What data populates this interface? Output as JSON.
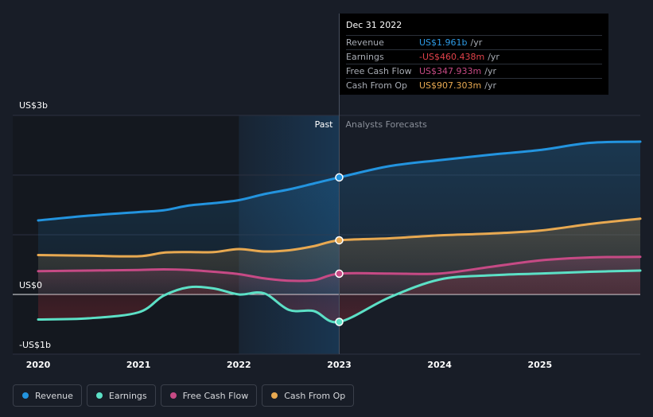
{
  "colors": {
    "background": "#181d27",
    "revenue": "#2394df",
    "earnings": "#5ce0c6",
    "free_cash_flow": "#c64a85",
    "cash_from_op": "#e8a951",
    "past_highlight": "#1a4a73",
    "grid": "#2b3140"
  },
  "tooltip": {
    "date": "Dec 31 2022",
    "rows": [
      {
        "label": "Revenue",
        "value": "US$1.961b",
        "unit": "/yr",
        "color": "#2e9be6"
      },
      {
        "label": "Earnings",
        "value": "-US$460.438m",
        "unit": "/yr",
        "color": "#e0424a"
      },
      {
        "label": "Free Cash Flow",
        "value": "US$347.933m",
        "unit": "/yr",
        "color": "#c64a85"
      },
      {
        "label": "Cash From Op",
        "value": "US$907.303m",
        "unit": "/yr",
        "color": "#e8a951"
      }
    ]
  },
  "legend": [
    {
      "label": "Revenue",
      "color": "#2394df"
    },
    {
      "label": "Earnings",
      "color": "#5ce0c6"
    },
    {
      "label": "Free Cash Flow",
      "color": "#c64a85"
    },
    {
      "label": "Cash From Op",
      "color": "#e8a951"
    }
  ],
  "chart_data": {
    "type": "line",
    "title": "",
    "xlabel": "",
    "ylabel": "",
    "past_label": "Past",
    "forecast_label": "Analysts Forecasts",
    "x_range": [
      2020.0,
      2026.0
    ],
    "divider_x": 2023.0,
    "highlight_start_x": 2022.0,
    "dim_start_x": 2021.0,
    "ylim": [
      -1.0,
      3.0
    ],
    "y_ticks": [
      {
        "value": 3,
        "label": "US$3b"
      },
      {
        "value": 0,
        "label": "US$0"
      },
      {
        "value": -1,
        "label": "-US$1b"
      }
    ],
    "y_gridlines": [
      3,
      2,
      1,
      0,
      -1
    ],
    "x_ticks": [
      {
        "value": 2020.0,
        "label": "2020"
      },
      {
        "value": 2021.0,
        "label": "2021"
      },
      {
        "value": 2022.0,
        "label": "2022"
      },
      {
        "value": 2023.0,
        "label": "2023"
      },
      {
        "value": 2024.0,
        "label": "2024"
      },
      {
        "value": 2025.0,
        "label": "2025"
      }
    ],
    "series": [
      {
        "name": "Revenue",
        "key": "revenue",
        "points": [
          [
            2020.0,
            1.24
          ],
          [
            2020.5,
            1.32
          ],
          [
            2021.0,
            1.38
          ],
          [
            2021.25,
            1.41
          ],
          [
            2021.5,
            1.49
          ],
          [
            2021.75,
            1.53
          ],
          [
            2022.0,
            1.58
          ],
          [
            2022.25,
            1.68
          ],
          [
            2022.5,
            1.76
          ],
          [
            2022.75,
            1.86
          ],
          [
            2023.0,
            1.961
          ],
          [
            2023.5,
            2.15
          ],
          [
            2024.0,
            2.25
          ],
          [
            2024.5,
            2.34
          ],
          [
            2025.0,
            2.42
          ],
          [
            2025.5,
            2.54
          ],
          [
            2026.0,
            2.56
          ]
        ],
        "fill": true
      },
      {
        "name": "Cash From Op",
        "key": "cash_from_op",
        "points": [
          [
            2020.0,
            0.66
          ],
          [
            2020.5,
            0.65
          ],
          [
            2021.0,
            0.64
          ],
          [
            2021.25,
            0.7
          ],
          [
            2021.5,
            0.71
          ],
          [
            2021.75,
            0.71
          ],
          [
            2022.0,
            0.76
          ],
          [
            2022.25,
            0.72
          ],
          [
            2022.5,
            0.74
          ],
          [
            2022.75,
            0.81
          ],
          [
            2023.0,
            0.907
          ],
          [
            2023.5,
            0.94
          ],
          [
            2024.0,
            0.99
          ],
          [
            2024.5,
            1.02
          ],
          [
            2025.0,
            1.07
          ],
          [
            2025.5,
            1.18
          ],
          [
            2026.0,
            1.27
          ]
        ],
        "fill": true
      },
      {
        "name": "Free Cash Flow",
        "key": "free_cash_flow",
        "points": [
          [
            2020.0,
            0.39
          ],
          [
            2020.5,
            0.4
          ],
          [
            2021.0,
            0.41
          ],
          [
            2021.25,
            0.42
          ],
          [
            2021.5,
            0.41
          ],
          [
            2021.75,
            0.38
          ],
          [
            2022.0,
            0.34
          ],
          [
            2022.25,
            0.27
          ],
          [
            2022.5,
            0.23
          ],
          [
            2022.75,
            0.24
          ],
          [
            2023.0,
            0.348
          ],
          [
            2023.5,
            0.35
          ],
          [
            2024.0,
            0.35
          ],
          [
            2024.5,
            0.46
          ],
          [
            2025.0,
            0.57
          ],
          [
            2025.5,
            0.62
          ],
          [
            2026.0,
            0.63
          ]
        ],
        "fill": true
      },
      {
        "name": "Earnings",
        "key": "earnings",
        "points": [
          [
            2020.0,
            -0.42
          ],
          [
            2020.5,
            -0.4
          ],
          [
            2021.0,
            -0.3
          ],
          [
            2021.25,
            -0.02
          ],
          [
            2021.5,
            0.12
          ],
          [
            2021.75,
            0.1
          ],
          [
            2022.0,
            0.0
          ],
          [
            2022.25,
            0.02
          ],
          [
            2022.5,
            -0.26
          ],
          [
            2022.75,
            -0.28
          ],
          [
            2023.0,
            -0.46
          ],
          [
            2023.5,
            -0.05
          ],
          [
            2024.0,
            0.25
          ],
          [
            2024.5,
            0.32
          ],
          [
            2025.0,
            0.35
          ],
          [
            2025.5,
            0.38
          ],
          [
            2026.0,
            0.4
          ]
        ],
        "fill": true
      }
    ],
    "markers": [
      {
        "series": "revenue",
        "x": 2023.0,
        "y": 1.961
      },
      {
        "series": "cash_from_op",
        "x": 2023.0,
        "y": 0.907
      },
      {
        "series": "free_cash_flow",
        "x": 2023.0,
        "y": 0.348
      },
      {
        "series": "earnings",
        "x": 2023.0,
        "y": -0.46
      }
    ]
  }
}
